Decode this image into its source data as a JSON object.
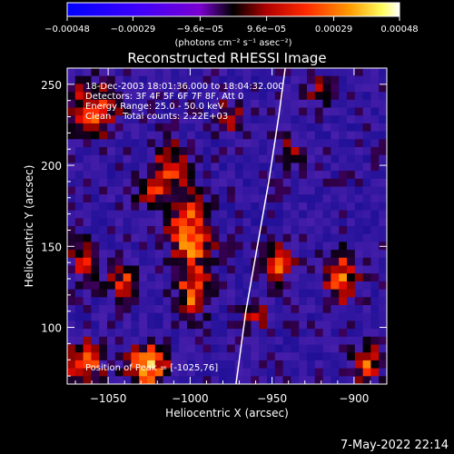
{
  "chart_data": {
    "type": "heatmap",
    "title": "Reconstructed RHESSI Image",
    "xlabel": "Heliocentric X (arcsec)",
    "ylabel": "Heliocentric Y (arcsec)",
    "xlim": [
      -1075,
      -880
    ],
    "ylim": [
      65,
      260
    ],
    "x_ticks": [
      -1050,
      -1000,
      -950,
      -900
    ],
    "x_tick_labels": [
      "−1050",
      "−1000",
      "−950",
      "−900"
    ],
    "y_ticks": [
      100,
      150,
      200,
      250
    ],
    "y_tick_labels": [
      "100",
      "150",
      "200",
      "250"
    ],
    "colorbar": {
      "range": [
        -0.00048,
        0.00048
      ],
      "ticks": [
        -0.00048,
        -0.00029,
        -9.6e-05,
        9.6e-05,
        0.00029,
        0.00048
      ],
      "tick_labels": [
        "−0.00048",
        "−0.00029",
        "−9.6e−05",
        "9.6e−05",
        "0.00029",
        "0.00048"
      ],
      "unit_label": "(photons cm⁻² s⁻¹ asec⁻²)"
    },
    "annotations": [
      "18-Dec-2003 18:01:36.000 to 18:04:32.000",
      "Detectors: 3F 4F 5F 6F 7F 8F, Att 0",
      "Energy Range: 25.0 - 50.0 keV",
      "Clean    Total counts: 2.22E+03",
      "Position of Peak = [-1025,76]"
    ],
    "grid": false,
    "limb": {
      "description": "solar limb arc",
      "color": "#ffffff"
    },
    "grid_cells": {
      "nx": 40,
      "ny": 40
    },
    "hotspots": [
      {
        "x": -1000,
        "y": 157,
        "sx": 9,
        "sy": 16,
        "a": 1.05
      },
      {
        "x": -998,
        "y": 120,
        "sx": 7,
        "sy": 10,
        "a": 0.85
      },
      {
        "x": -1012,
        "y": 200,
        "sx": 8,
        "sy": 10,
        "a": 0.75
      },
      {
        "x": -1025,
        "y": 76,
        "sx": 9,
        "sy": 9,
        "a": 1.1
      },
      {
        "x": -1065,
        "y": 78,
        "sx": 8,
        "sy": 9,
        "a": 0.95
      },
      {
        "x": -1060,
        "y": 235,
        "sx": 11,
        "sy": 11,
        "a": 0.85
      },
      {
        "x": -1040,
        "y": 128,
        "sx": 8,
        "sy": 7,
        "a": 0.7
      },
      {
        "x": -1065,
        "y": 140,
        "sx": 6,
        "sy": 10,
        "a": 0.7
      },
      {
        "x": -1025,
        "y": 185,
        "sx": 7,
        "sy": 7,
        "a": 0.6
      },
      {
        "x": -945,
        "y": 140,
        "sx": 7,
        "sy": 8,
        "a": 0.9
      },
      {
        "x": -960,
        "y": 108,
        "sx": 6,
        "sy": 6,
        "a": 0.55
      },
      {
        "x": -908,
        "y": 130,
        "sx": 7,
        "sy": 12,
        "a": 0.85
      },
      {
        "x": -893,
        "y": 78,
        "sx": 7,
        "sy": 8,
        "a": 0.85
      },
      {
        "x": -938,
        "y": 210,
        "sx": 6,
        "sy": 7,
        "a": 0.5
      },
      {
        "x": -920,
        "y": 245,
        "sx": 7,
        "sy": 7,
        "a": 0.55
      },
      {
        "x": -975,
        "y": 230,
        "sx": 6,
        "sy": 8,
        "a": 0.5
      }
    ],
    "colors": {
      "low": "#2b0f8a",
      "background": "#000000"
    }
  },
  "footer": {
    "timestamp": "7-May-2022 22:14"
  }
}
